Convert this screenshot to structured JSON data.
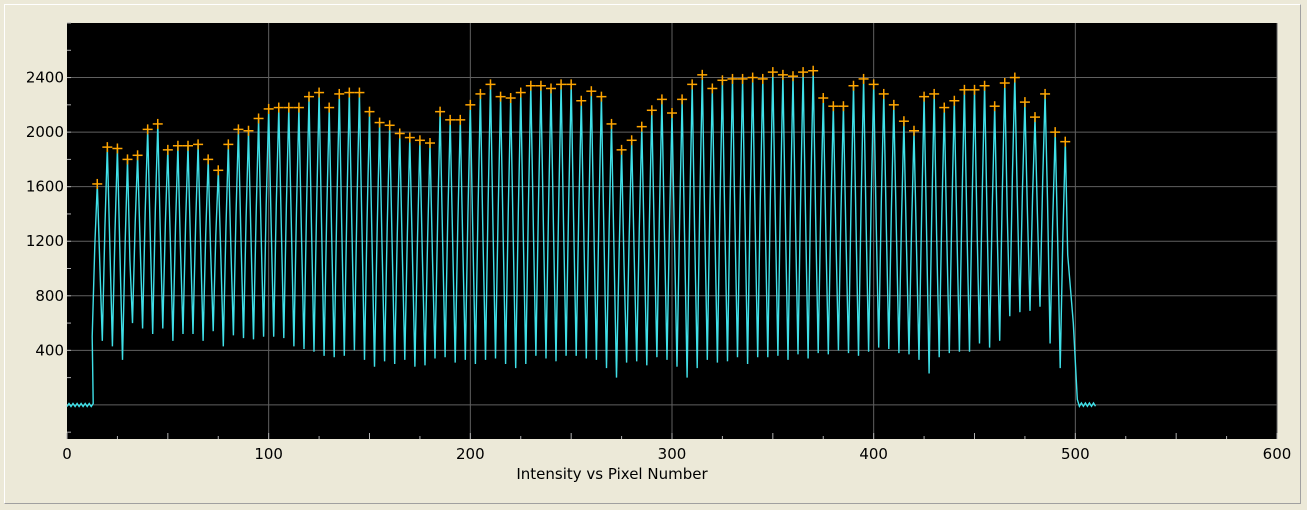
{
  "chart_data": {
    "type": "line",
    "xlabel": "Intensity vs Pixel Number",
    "ylabel": "",
    "xlim": [
      0,
      600
    ],
    "ylim": [
      -250,
      2800
    ],
    "x_ticks": [
      0,
      100,
      200,
      300,
      400,
      500,
      600
    ],
    "x_tick_labels": [
      "0",
      "100",
      "200",
      "300",
      "400",
      "500",
      "600"
    ],
    "y_ticks": [
      400,
      800,
      1200,
      1600,
      2000,
      2400
    ],
    "y_tick_labels": [
      "400",
      "800",
      "1200",
      "1600",
      "2000",
      "2400"
    ],
    "grid": true,
    "colors": {
      "background": "#000000",
      "grid": "#606060",
      "signal": "#3fe0e8",
      "peaks": "#ffa500",
      "frame": "#ece9d8"
    },
    "series": [
      {
        "style": "line",
        "color": "#3fe0e8",
        "baseline": 0,
        "signal_start": 13,
        "signal_end": 500,
        "x_end": 510,
        "peak_x": [
          15,
          20,
          25,
          30,
          35,
          40,
          45,
          50,
          55,
          60,
          65,
          70,
          75,
          80,
          85,
          90,
          95,
          100,
          105,
          110,
          115,
          120,
          125,
          130,
          135,
          140,
          145,
          150,
          155,
          160,
          165,
          170,
          175,
          180,
          185,
          190,
          195,
          200,
          205,
          210,
          215,
          220,
          225,
          230,
          235,
          240,
          245,
          250,
          255,
          260,
          265,
          270,
          275,
          280,
          285,
          290,
          295,
          300,
          305,
          310,
          315,
          320,
          325,
          330,
          335,
          340,
          345,
          350,
          355,
          360,
          365,
          370,
          375,
          380,
          385,
          390,
          395,
          400,
          405,
          410,
          415,
          420,
          425,
          430,
          435,
          440,
          445,
          450,
          455,
          460,
          465,
          470,
          475,
          480,
          485,
          490,
          495
        ],
        "peak_y": [
          1620,
          1890,
          1880,
          1800,
          1830,
          2020,
          2060,
          1870,
          1900,
          1900,
          1910,
          1800,
          1720,
          1910,
          2020,
          2010,
          2100,
          2170,
          2180,
          2180,
          2180,
          2260,
          2290,
          2180,
          2280,
          2290,
          2290,
          2150,
          2070,
          2050,
          1990,
          1960,
          1940,
          1920,
          2150,
          2090,
          2090,
          2200,
          2280,
          2350,
          2260,
          2250,
          2290,
          2340,
          2340,
          2320,
          2350,
          2350,
          2230,
          2300,
          2260,
          2060,
          1870,
          1940,
          2040,
          2160,
          2240,
          2140,
          2240,
          2350,
          2420,
          2320,
          2380,
          2390,
          2390,
          2400,
          2390,
          2440,
          2420,
          2410,
          2440,
          2450,
          2250,
          2190,
          2190,
          2340,
          2390,
          2350,
          2280,
          2200,
          2080,
          2010,
          2260,
          2280,
          2180,
          2230,
          2310,
          2310,
          2340,
          2190,
          2360,
          2400,
          2220,
          2110,
          2280,
          2000,
          1930
        ],
        "trough_y": [
          500,
          470,
          430,
          330,
          600,
          560,
          520,
          560,
          470,
          520,
          520,
          470,
          540,
          430,
          510,
          490,
          480,
          500,
          500,
          490,
          430,
          410,
          390,
          360,
          350,
          360,
          400,
          330,
          280,
          320,
          300,
          330,
          280,
          290,
          340,
          350,
          310,
          330,
          300,
          330,
          340,
          300,
          270,
          300,
          360,
          340,
          320,
          360,
          360,
          340,
          330,
          270,
          200,
          310,
          320,
          290,
          350,
          330,
          280,
          200,
          270,
          330,
          310,
          320,
          350,
          300,
          350,
          350,
          360,
          330,
          370,
          340,
          380,
          370,
          400,
          380,
          360,
          390,
          420,
          410,
          380,
          370,
          330,
          230,
          350,
          380,
          390,
          390,
          450,
          420,
          470,
          650,
          680,
          690,
          720,
          450,
          270
        ]
      },
      {
        "style": "markers",
        "marker": "+",
        "color": "#ffa500",
        "uses_peaks_of_series": 0
      }
    ]
  }
}
